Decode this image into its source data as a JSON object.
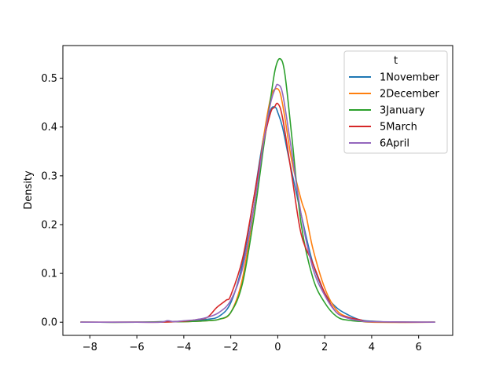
{
  "chart_data": {
    "type": "line",
    "title": "",
    "xlabel": "",
    "ylabel": "Density",
    "xlim": [
      -9.15,
      7.45
    ],
    "ylim": [
      -0.027,
      0.567
    ],
    "xticks": [
      -8,
      -6,
      -4,
      -2,
      0,
      2,
      4,
      6
    ],
    "yticks": [
      0.0,
      0.1,
      0.2,
      0.3,
      0.4,
      0.5
    ],
    "ytick_labels": [
      "0.0",
      "0.1",
      "0.2",
      "0.3",
      "0.4",
      "0.5"
    ],
    "xtick_labels": [
      "−8",
      "−6",
      "−4",
      "−2",
      "0",
      "2",
      "4",
      "6"
    ],
    "grid": false,
    "legend": {
      "title": "t",
      "placement": "top-right"
    },
    "series": [
      {
        "name": "1November",
        "color": "#1f77b4",
        "x": [
          -8.4,
          -6,
          -5,
          -4,
          -3.5,
          -3,
          -2.5,
          -2,
          -1.5,
          -1,
          -0.6,
          -0.3,
          -0.1,
          0,
          0.2,
          0.5,
          1,
          1.5,
          2,
          2.5,
          3,
          3.5,
          4,
          5,
          6.7
        ],
        "y": [
          0,
          0,
          0.001,
          0.002,
          0.004,
          0.006,
          0.012,
          0.04,
          0.12,
          0.26,
          0.38,
          0.435,
          0.44,
          0.43,
          0.4,
          0.33,
          0.22,
          0.12,
          0.06,
          0.03,
          0.015,
          0.005,
          0.002,
          0,
          0
        ]
      },
      {
        "name": "2December",
        "color": "#ff7f0e",
        "x": [
          -8.4,
          -6,
          -4,
          -3,
          -2.5,
          -2,
          -1.5,
          -1,
          -0.6,
          -0.3,
          -0.1,
          0.1,
          0.3,
          0.6,
          1,
          1.2,
          1.5,
          2,
          2.5,
          3,
          3.5,
          4,
          6.7
        ],
        "y": [
          0,
          0,
          0.001,
          0.003,
          0.006,
          0.02,
          0.09,
          0.24,
          0.38,
          0.46,
          0.478,
          0.47,
          0.42,
          0.33,
          0.25,
          0.22,
          0.15,
          0.07,
          0.025,
          0.01,
          0.004,
          0,
          0
        ]
      },
      {
        "name": "3January",
        "color": "#2ca02c",
        "x": [
          -8.4,
          -6,
          -4,
          -3,
          -2.5,
          -2,
          -1.5,
          -1,
          -0.6,
          -0.3,
          -0.1,
          0.1,
          0.3,
          0.6,
          1,
          1.5,
          2,
          2.5,
          3,
          4,
          6.7
        ],
        "y": [
          0,
          0,
          0.001,
          0.003,
          0.006,
          0.02,
          0.08,
          0.22,
          0.36,
          0.46,
          0.52,
          0.54,
          0.51,
          0.38,
          0.2,
          0.09,
          0.04,
          0.012,
          0.004,
          0.001,
          0
        ]
      },
      {
        "name": "5March",
        "color": "#d62728",
        "x": [
          -8.4,
          -6,
          -5,
          -4,
          -3.5,
          -3,
          -2.6,
          -2.2,
          -2,
          -1.5,
          -1,
          -0.6,
          -0.3,
          -0.15,
          0,
          0.2,
          0.6,
          1,
          1.5,
          2,
          2.5,
          3,
          3.5,
          4,
          6.7
        ],
        "y": [
          0,
          0,
          0,
          0.002,
          0.005,
          0.01,
          0.03,
          0.045,
          0.055,
          0.13,
          0.26,
          0.37,
          0.43,
          0.44,
          0.448,
          0.42,
          0.3,
          0.18,
          0.12,
          0.06,
          0.02,
          0.01,
          0.005,
          0.001,
          0
        ]
      },
      {
        "name": "6April",
        "color": "#9467bd",
        "x": [
          -8.4,
          -6,
          -5,
          -4.7,
          -4.4,
          -4,
          -3.5,
          -3,
          -2.5,
          -2,
          -1.5,
          -1,
          -0.6,
          -0.3,
          -0.1,
          0,
          0.2,
          0.5,
          1,
          1.5,
          2,
          2.5,
          3,
          3.5,
          4,
          6.7
        ],
        "y": [
          0,
          0,
          0,
          0.003,
          0.001,
          0.003,
          0.005,
          0.01,
          0.02,
          0.045,
          0.11,
          0.24,
          0.37,
          0.45,
          0.48,
          0.487,
          0.47,
          0.38,
          0.22,
          0.11,
          0.055,
          0.02,
          0.008,
          0.003,
          0.001,
          0
        ]
      }
    ]
  }
}
